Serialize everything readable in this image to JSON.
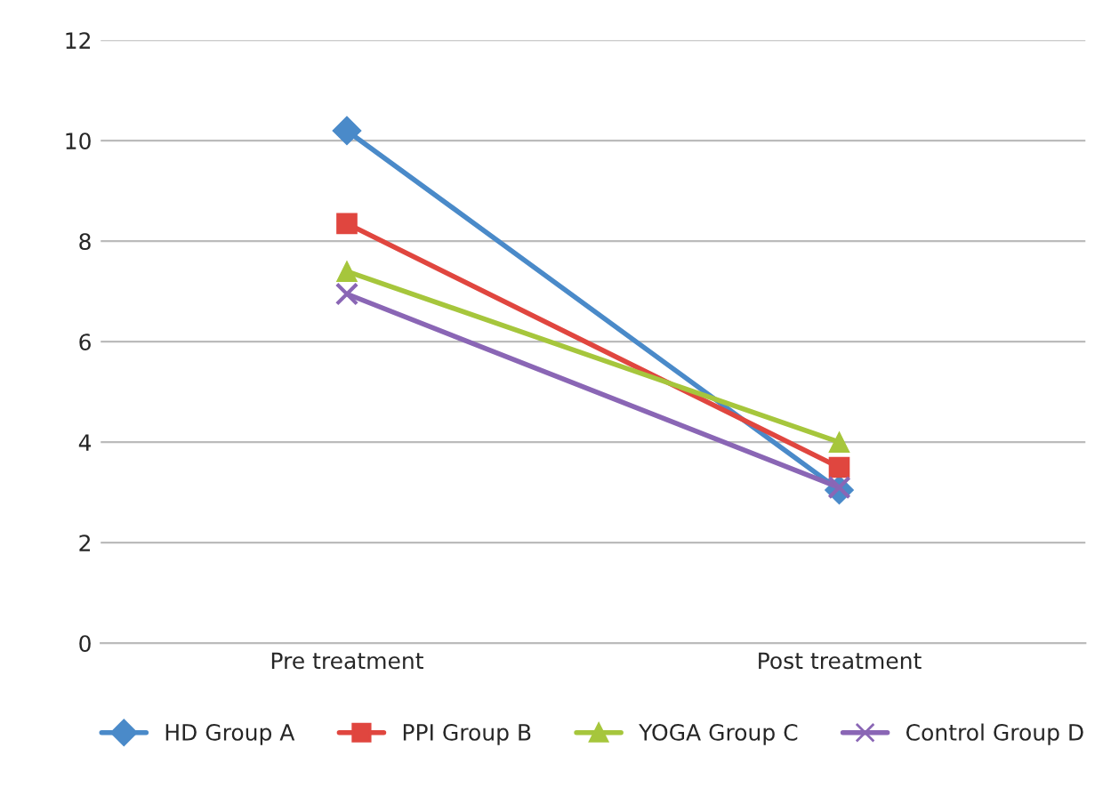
{
  "chart_data": {
    "type": "line",
    "categories": [
      "Pre treatment",
      "Post treatment"
    ],
    "series": [
      {
        "name": "HD Group A",
        "color": "#4a8ac9",
        "values": [
          10.2,
          3.05
        ],
        "marker": "diamond"
      },
      {
        "name": "PPI Group B",
        "color": "#e0463f",
        "values": [
          8.35,
          3.5
        ],
        "marker": "square"
      },
      {
        "name": "YOGA Group C",
        "color": "#a6c63c",
        "values": [
          7.4,
          4.0
        ],
        "marker": "triangle"
      },
      {
        "name": "Control Group D",
        "color": "#8a66b5",
        "values": [
          6.95,
          3.1
        ],
        "marker": "cross"
      }
    ],
    "ylim": [
      0,
      12
    ],
    "yticks": [
      0,
      2,
      4,
      6,
      8,
      10,
      12
    ],
    "grid": "y",
    "legend": "bottom",
    "line_style": "solid"
  }
}
